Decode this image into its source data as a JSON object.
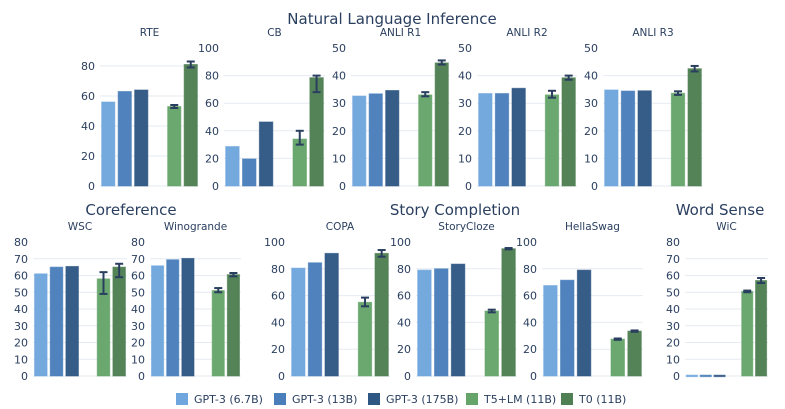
{
  "chart_data": {
    "type": "bar",
    "group_titles": [
      "Natural Language Inference",
      "Coreference",
      "Story Completion",
      "Word Sense"
    ],
    "series_names": [
      "GPT-3 (6.7B)",
      "GPT-3 (13B)",
      "GPT-3 (175B)",
      "T5+LM (11B)",
      "T0 (11B)"
    ],
    "colors": [
      "#6fa6dd",
      "#4a7fbb",
      "#2f5784",
      "#66a56a",
      "#4f7f53"
    ],
    "grid": true,
    "legend": "bottom",
    "panels": [
      {
        "title": "RTE",
        "group": "Natural Language Inference",
        "ylim": [
          0,
          92
        ],
        "ticks": [
          0,
          20,
          40,
          60,
          80
        ],
        "values": [
          56,
          63,
          64,
          53,
          81
        ],
        "errors": [
          null,
          null,
          null,
          [
            52,
            54
          ],
          [
            79,
            83
          ]
        ]
      },
      {
        "title": "CB",
        "group": "Natural Language Inference",
        "ylim": [
          0,
          100
        ],
        "ticks": [
          0,
          20,
          40,
          60,
          80,
          100
        ],
        "values": [
          28.6,
          19.6,
          46.4,
          34,
          78.5
        ],
        "errors": [
          null,
          null,
          null,
          [
            30,
            40
          ],
          [
            68,
            80
          ]
        ]
      },
      {
        "title": "ANLI R1",
        "group": "Natural Language Inference",
        "ylim": [
          0,
          50
        ],
        "ticks": [
          0,
          10,
          20,
          30,
          40,
          50
        ],
        "values": [
          32.6,
          33.4,
          34.6,
          33,
          44.6
        ],
        "errors": [
          null,
          null,
          null,
          [
            32.5,
            34
          ],
          [
            44,
            45.5
          ]
        ]
      },
      {
        "title": "ANLI R2",
        "group": "Natural Language Inference",
        "ylim": [
          0,
          50
        ],
        "ticks": [
          0,
          10,
          20,
          30,
          40,
          50
        ],
        "values": [
          33.5,
          33.5,
          35.4,
          33,
          39.2
        ],
        "errors": [
          null,
          null,
          null,
          [
            32,
            34.5
          ],
          [
            38.5,
            40
          ]
        ]
      },
      {
        "title": "ANLI R3",
        "group": "Natural Language Inference",
        "ylim": [
          0,
          50
        ],
        "ticks": [
          0,
          10,
          20,
          30,
          40,
          50
        ],
        "values": [
          34.8,
          34.4,
          34.5,
          33.6,
          42.5
        ],
        "errors": [
          null,
          null,
          null,
          [
            33,
            34.3
          ],
          [
            41.5,
            43.5
          ]
        ]
      },
      {
        "title": "WSC",
        "group": "Coreference",
        "ylim": [
          0,
          80
        ],
        "ticks": [
          0,
          10,
          20,
          30,
          40,
          50,
          60,
          70,
          80
        ],
        "values": [
          61,
          65,
          65.4,
          58,
          65
        ],
        "errors": [
          null,
          null,
          null,
          [
            49,
            62
          ],
          [
            59,
            67
          ]
        ]
      },
      {
        "title": "Winogrande",
        "group": "Coreference",
        "ylim": [
          0,
          80
        ],
        "ticks": [
          0,
          10,
          20,
          30,
          40,
          50,
          60,
          70,
          80
        ],
        "values": [
          65.8,
          69.4,
          70.2,
          51,
          60.5
        ],
        "errors": [
          null,
          null,
          null,
          [
            50,
            52.5
          ],
          [
            59.5,
            61.5
          ]
        ]
      },
      {
        "title": "COPA",
        "group": "Story Completion",
        "ylim": [
          0,
          100
        ],
        "ticks": [
          0,
          20,
          40,
          60,
          80,
          100
        ],
        "values": [
          80.5,
          84.5,
          91.5,
          55,
          91.5
        ],
        "errors": [
          null,
          null,
          null,
          [
            52,
            58.5
          ],
          [
            89,
            94
          ]
        ]
      },
      {
        "title": "StoryCloze",
        "group": "Story Completion",
        "ylim": [
          0,
          100
        ],
        "ticks": [
          0,
          20,
          40,
          60,
          80,
          100
        ],
        "values": [
          79,
          80,
          83.5,
          48.5,
          95
        ],
        "errors": [
          null,
          null,
          null,
          [
            47.5,
            49.5
          ],
          [
            94.5,
            95.5
          ]
        ]
      },
      {
        "title": "HellaSwag",
        "group": "Story Completion",
        "ylim": [
          0,
          100
        ],
        "ticks": [
          0,
          20,
          40,
          60,
          80,
          100
        ],
        "values": [
          67.5,
          71.5,
          79,
          27.5,
          33.5
        ],
        "errors": [
          null,
          null,
          null,
          [
            27,
            28
          ],
          [
            33,
            34
          ]
        ]
      },
      {
        "title": "WiC",
        "group": "Word Sense",
        "ylim": [
          0,
          80
        ],
        "ticks": [
          0,
          10,
          20,
          30,
          40,
          50,
          60,
          70,
          80
        ],
        "values": [
          0.5,
          0.5,
          0.5,
          50.5,
          57
        ],
        "errors": [
          null,
          null,
          null,
          [
            50,
            51
          ],
          [
            55.5,
            58.5
          ]
        ]
      }
    ]
  }
}
